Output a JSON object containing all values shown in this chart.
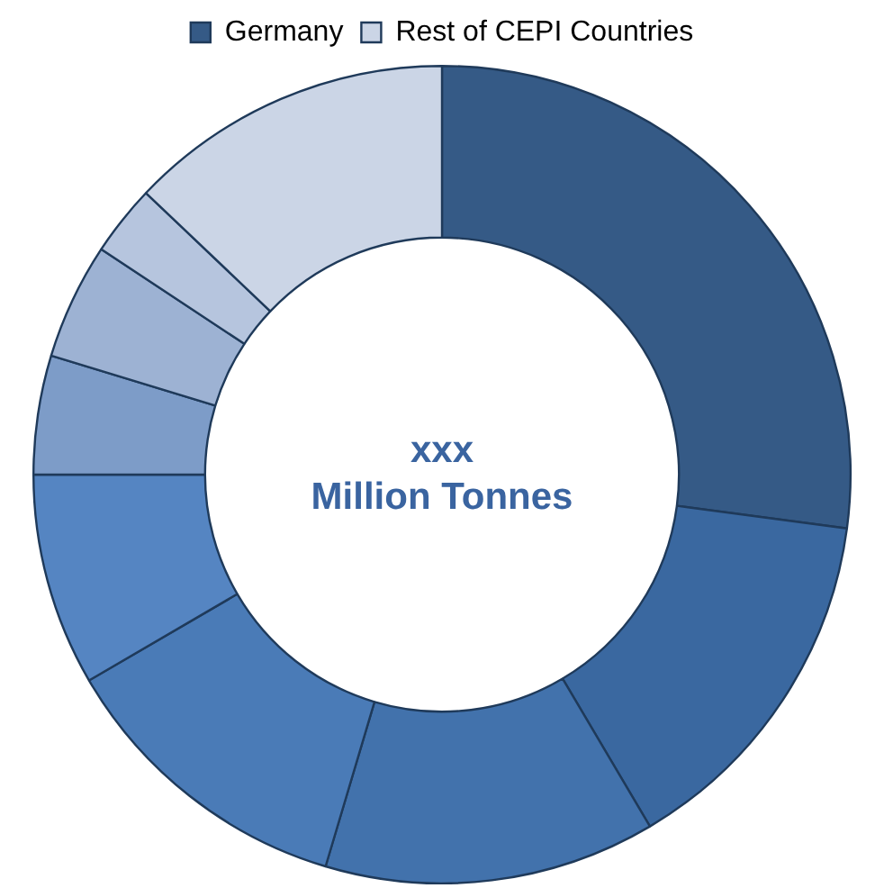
{
  "chart_data": {
    "type": "donut",
    "categories": [
      "Germany",
      null,
      null,
      null,
      null,
      null,
      null,
      null,
      "Rest of CEPI Countries"
    ],
    "values": [
      27.1,
      14.4,
      13.1,
      12.0,
      8.4,
      4.7,
      4.6,
      2.8,
      12.9
    ],
    "colors": [
      "#355a86",
      "#3a68a0",
      "#4272ac",
      "#4a7bb7",
      "#5585c2",
      "#7d9cc8",
      "#9db2d3",
      "#b6c5de",
      "#cbd5e6"
    ],
    "annotations": [
      "xxx",
      "Million Tonnes"
    ],
    "legend": "top"
  }
}
